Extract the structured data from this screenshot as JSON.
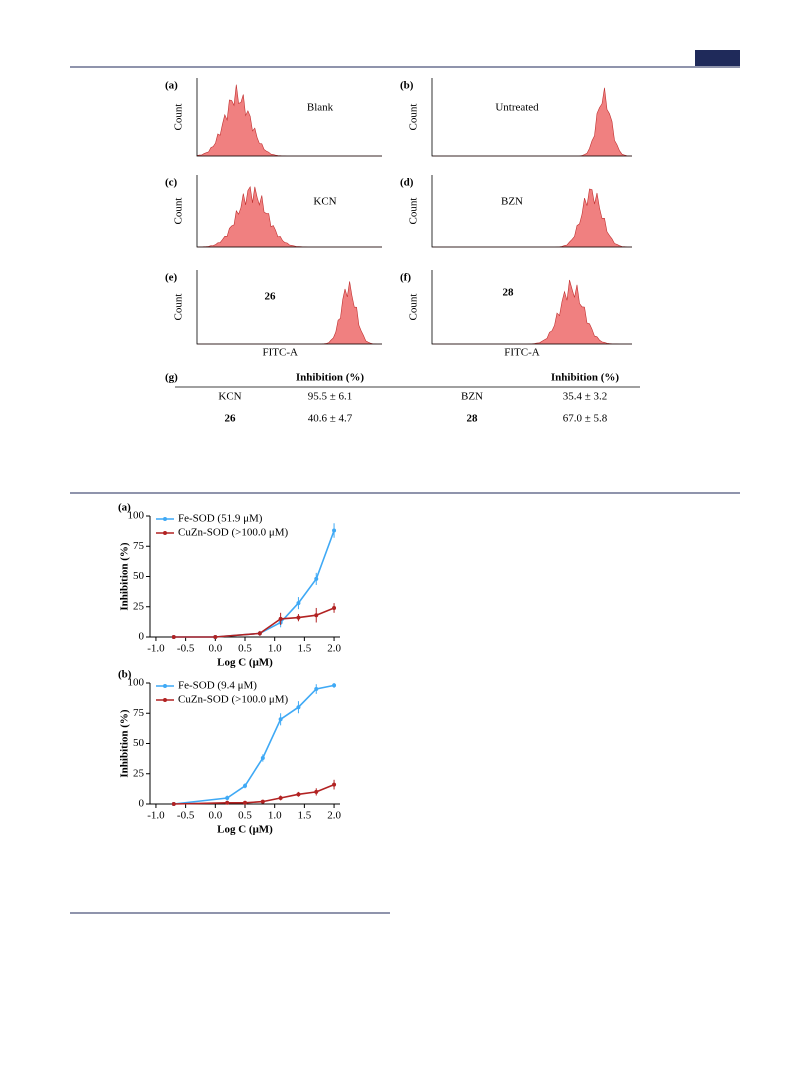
{
  "figure1": {
    "panels": [
      {
        "label": "(a)",
        "name": "Blank"
      },
      {
        "label": "(b)",
        "name": "Untreated"
      },
      {
        "label": "(c)",
        "name": "KCN"
      },
      {
        "label": "(d)",
        "name": "BZN"
      },
      {
        "label": "(e)",
        "name": "26"
      },
      {
        "label": "(f)",
        "name": "28"
      }
    ],
    "count_label": "Count",
    "x_label": "FITC-A"
  },
  "table": {
    "label": "(g)",
    "header": [
      "Inhibition (%)",
      "Inhibition (%)"
    ],
    "rows": [
      [
        "KCN",
        "95.5 ± 6.1",
        "BZN",
        "35.4 ± 3.2"
      ],
      [
        "26",
        "40.6 ± 4.7",
        "28",
        "67.0 ± 5.8"
      ]
    ]
  },
  "chart_data": [
    {
      "type": "line",
      "panel_label": "(a)",
      "x_label": "Log C (μM)",
      "y_label": "Inhibition (%)",
      "x": [
        -0.7,
        0.0,
        0.75,
        1.1,
        1.4,
        1.7,
        2.0
      ],
      "series": [
        {
          "name": "Fe-SOD (51.9 μM)",
          "color": "#3fa9f5",
          "values": [
            0,
            0,
            3,
            12,
            28,
            48,
            88
          ],
          "errors": [
            1,
            1,
            2,
            4,
            5,
            5,
            6
          ]
        },
        {
          "name": "CuZn-SOD (>100.0 μM)",
          "color": "#b22222",
          "values": [
            0,
            0,
            3,
            15,
            16,
            18,
            24
          ],
          "errors": [
            1,
            1,
            2,
            5,
            3,
            6,
            4
          ]
        }
      ],
      "xlim": [
        -1.1,
        2.1
      ],
      "ylim": [
        0,
        100
      ],
      "xticks": [
        {
          "value": -1,
          "label": "-1.0"
        },
        -0.5,
        {
          "value": 0,
          "label": "0.0"
        },
        0.5,
        {
          "value": 1,
          "label": "1.0"
        },
        1.5,
        {
          "value": 2,
          "label": "2.0"
        }
      ],
      "yticks": [
        0,
        25,
        50,
        75,
        100
      ]
    },
    {
      "type": "line",
      "panel_label": "(b)",
      "x_label": "Log C (μM)",
      "y_label": "Inhibition (%)",
      "x": [
        -0.7,
        0.2,
        0.5,
        0.8,
        1.1,
        1.4,
        1.7,
        2.0
      ],
      "series": [
        {
          "name": "Fe-SOD (9.4 μM)",
          "color": "#3fa9f5",
          "values": [
            0,
            5,
            15,
            38,
            70,
            80,
            95,
            98
          ],
          "errors": [
            1,
            2,
            2,
            3,
            5,
            5,
            4,
            2
          ]
        },
        {
          "name": "CuZn-SOD (>100.0 μM)",
          "color": "#b22222",
          "values": [
            0,
            1,
            1,
            2,
            5,
            8,
            10,
            16
          ],
          "errors": [
            1,
            1,
            1,
            1,
            2,
            2,
            3,
            4
          ]
        }
      ],
      "xlim": [
        -1.1,
        2.1
      ],
      "ylim": [
        0,
        100
      ],
      "xticks": [
        {
          "value": -1,
          "label": "-1.0"
        },
        -0.5,
        {
          "value": 0,
          "label": "0.0"
        },
        0.5,
        {
          "value": 1,
          "label": "1.0"
        },
        1.5,
        {
          "value": 2,
          "label": "2.0"
        }
      ],
      "yticks": [
        0,
        25,
        50,
        75,
        100
      ]
    }
  ]
}
